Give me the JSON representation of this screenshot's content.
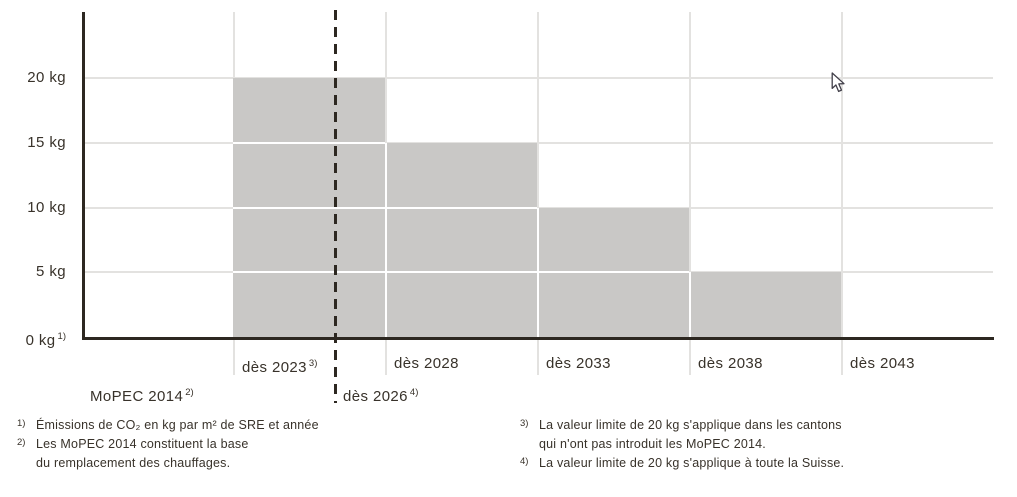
{
  "colors": {
    "bar": "#c9c8c6",
    "grid": "#e3e2e0",
    "axis": "#2d2821",
    "text": "#38322a",
    "background": "#ffffff"
  },
  "chart_data": {
    "type": "bar",
    "subtype": "step-limits",
    "title": "",
    "unit": "kg",
    "categories": [
      "dès 2023",
      "dès 2028",
      "dès 2033",
      "dès 2038",
      "dès 2043"
    ],
    "category_superscripts": [
      "3)",
      "",
      "",
      "",
      ""
    ],
    "values": [
      20,
      15,
      10,
      5,
      0
    ],
    "y_ticks": [
      {
        "value": 0,
        "label": "0 kg",
        "sup": "1)"
      },
      {
        "value": 5,
        "label": "5 kg",
        "sup": ""
      },
      {
        "value": 10,
        "label": "10 kg",
        "sup": ""
      },
      {
        "value": 15,
        "label": "15 kg",
        "sup": ""
      },
      {
        "value": 20,
        "label": "20 kg",
        "sup": ""
      }
    ],
    "ylim": [
      0,
      25
    ],
    "grid": true,
    "baseline_label": {
      "label": "MoPEC 2014",
      "sup": "2)"
    },
    "dashed_marker": {
      "label": "dès 2026",
      "sup": "4)"
    }
  },
  "footnotes": {
    "left": [
      {
        "marker": "1)",
        "lines": [
          "Émissions de CO₂ en kg par m² de SRE et année"
        ]
      },
      {
        "marker": "2)",
        "lines": [
          "Les MoPEC 2014 constituent la base",
          "du remplacement des chauffages."
        ]
      }
    ],
    "right": [
      {
        "marker": "3)",
        "lines": [
          "La valeur limite de 20 kg s'applique dans les cantons",
          "qui n'ont pas introduit les MoPEC 2014."
        ]
      },
      {
        "marker": "4)",
        "lines": [
          "La valeur limite de 20 kg s'applique à toute la Suisse."
        ]
      }
    ]
  }
}
